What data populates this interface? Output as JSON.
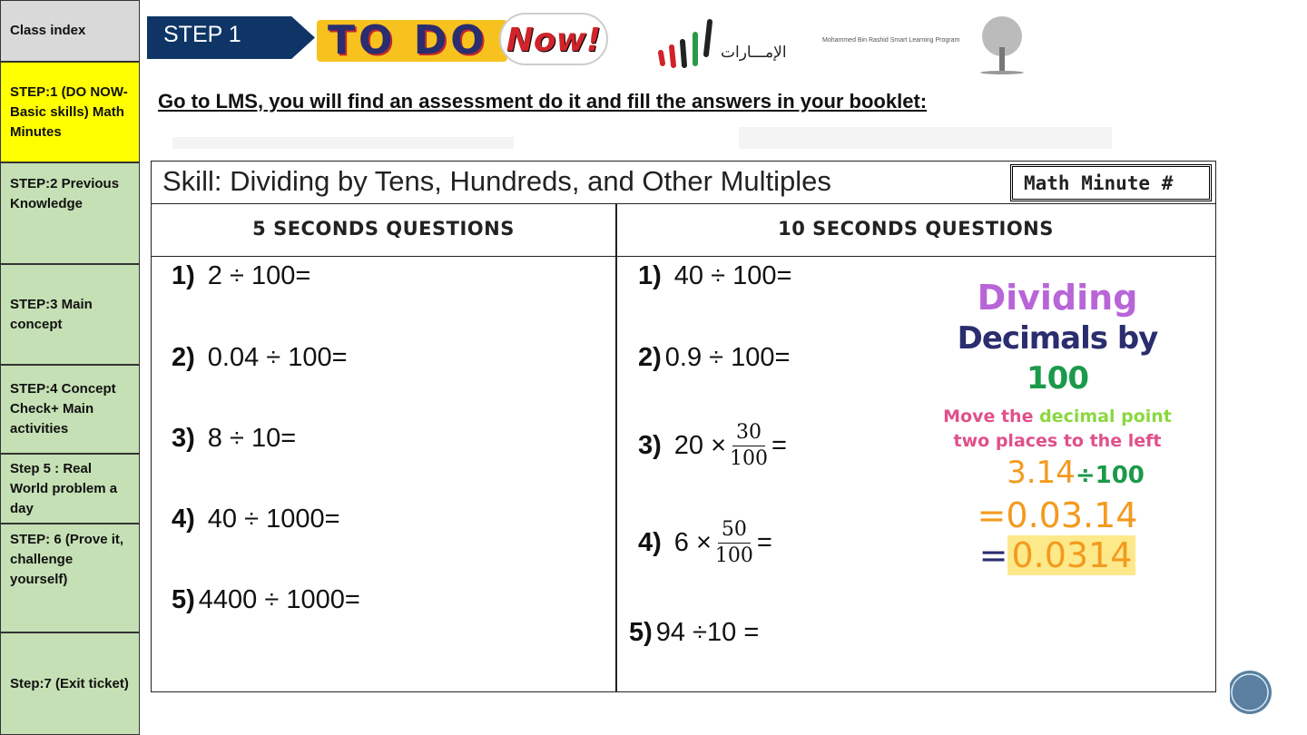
{
  "sidebar": {
    "items": [
      {
        "label": "Class index",
        "color": "#d9d9d9"
      },
      {
        "label": "STEP:1 (DO NOW-Basic skills) Math Minutes",
        "color": "#ffff00"
      },
      {
        "label": "STEP:2 Previous Knowledge",
        "color": "#c5e0b4"
      },
      {
        "label": "STEP:3 Main concept",
        "color": "#c5e0b4"
      },
      {
        "label": "STEP:4 Concept Check+ Main activities",
        "color": "#c5e0b4"
      },
      {
        "label": "Step 5 : Real World problem a day",
        "color": "#c5e0b4"
      },
      {
        "label": "STEP: 6 (Prove it, challenge yourself)",
        "color": "#c5e0b4"
      },
      {
        "label": "Step:7 (Exit ticket)",
        "color": "#c5e0b4"
      }
    ]
  },
  "header": {
    "step": "STEP 1",
    "todo": "TO DO",
    "now": "Now!",
    "logo1": "الإمـــارات",
    "logo2": "Mohammed Bin Rashid Smart Learning Program"
  },
  "instruction": "Go to LMS, you will find an assessment do it and fill the answers in your booklet:",
  "worksheet": {
    "skill": "Skill:  Dividing by Tens, Hundreds, and Other Multiples",
    "badge": "Math Minute #",
    "col1": "5 SECONDS QUESTIONS",
    "col2": "10 SECONDS QUESTIONS",
    "q5": [
      {
        "n": "1)",
        "t": "2 ÷ 100="
      },
      {
        "n": "2)",
        "t": "0.04 ÷ 100="
      },
      {
        "n": "3)",
        "t": "8 ÷ 10="
      },
      {
        "n": "4)",
        "t": "40 ÷ 1000="
      },
      {
        "n": "5)",
        "t": "4400 ÷ 1000="
      }
    ],
    "q10": [
      {
        "n": "1)",
        "t": "40 ÷ 100="
      },
      {
        "n": "2)",
        "t": "0.9 ÷ 100="
      },
      {
        "n": "3)",
        "pre": "20 ×",
        "num": "30",
        "den": "100",
        "post": "="
      },
      {
        "n": "4)",
        "pre": "6 ×",
        "num": "50",
        "den": "100",
        "post": "="
      },
      {
        "n": "5)",
        "t": "94 ÷10 ="
      }
    ]
  },
  "poster": {
    "l1": "Dividing",
    "l2": "Decimals by",
    "l2b": "100",
    "l3a": "Move the",
    "l3b": "decimal point",
    "l4": "two places to the left",
    "e1": "3.14",
    "e1b": "÷100",
    "e2": "=0.03.14",
    "e3": "=",
    "e3b": "0.0314"
  }
}
